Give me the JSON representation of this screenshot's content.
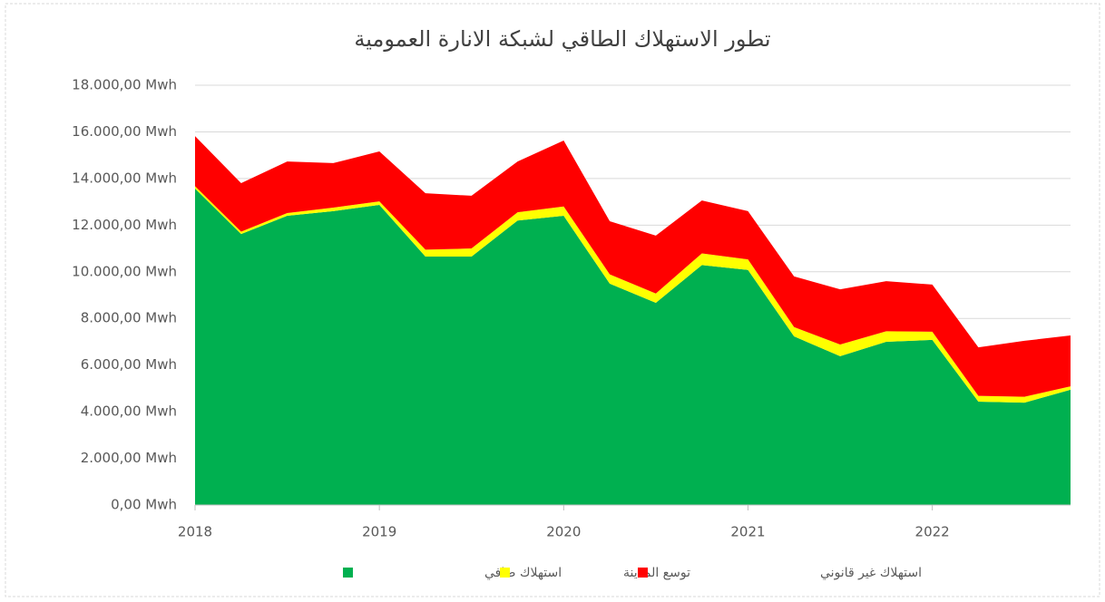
{
  "chart_data": {
    "type": "stacked_area",
    "title": "تطور الاستهلاك الطاقي لشبكة الانارة العمومية",
    "x": [
      2018,
      2018.25,
      2018.5,
      2018.75,
      2019,
      2019.25,
      2019.5,
      2019.75,
      2020,
      2020.25,
      2020.5,
      2020.75,
      2021,
      2021.25,
      2021.5,
      2021.75,
      2022,
      2022.25,
      2022.5,
      2022.75
    ],
    "series": [
      {
        "name": "استهلاك صافي",
        "color": "#00b050",
        "values": [
          13570,
          11620,
          12400,
          12600,
          12870,
          10650,
          10650,
          12200,
          12400,
          9490,
          8670,
          10290,
          10080,
          7230,
          6380,
          7000,
          7080,
          4430,
          4390,
          4940
        ]
      },
      {
        "name": "توسع المدينة",
        "color": "#ffff00",
        "values": [
          100,
          100,
          120,
          150,
          150,
          300,
          350,
          350,
          400,
          400,
          400,
          500,
          450,
          400,
          500,
          450,
          350,
          250,
          250,
          150
        ]
      },
      {
        "name": "استهلاك غير قانوني",
        "color": "#ff0000",
        "values": [
          2150,
          2080,
          2210,
          1910,
          2140,
          2420,
          2260,
          2180,
          2830,
          2280,
          2480,
          2270,
          2070,
          2170,
          2370,
          2150,
          2020,
          2080,
          2400,
          2180
        ]
      }
    ],
    "xlim": [
      2018,
      2022.75
    ],
    "xticks": [
      2018,
      2019,
      2020,
      2021,
      2022
    ],
    "ylim": [
      0,
      18000
    ],
    "yticks": [
      {
        "value": 0,
        "label": "0,00 Mwh"
      },
      {
        "value": 2000,
        "label": "2.000,00 Mwh"
      },
      {
        "value": 4000,
        "label": "4.000,00 Mwh"
      },
      {
        "value": 6000,
        "label": "6.000,00 Mwh"
      },
      {
        "value": 8000,
        "label": "8.000,00 Mwh"
      },
      {
        "value": 10000,
        "label": "10.000,00 Mwh"
      },
      {
        "value": 12000,
        "label": "12.000,00 Mwh"
      },
      {
        "value": 14000,
        "label": "14.000,00 Mwh"
      },
      {
        "value": 16000,
        "label": "16.000,00 Mwh"
      },
      {
        "value": 18000,
        "label": "18.000,00 Mwh"
      }
    ],
    "grid": true
  }
}
